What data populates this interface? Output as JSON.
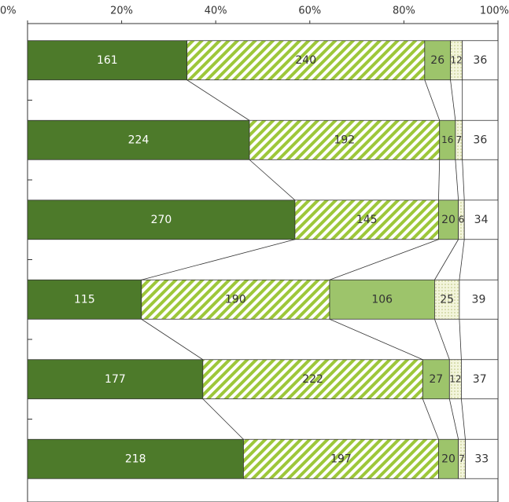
{
  "chart_data": {
    "type": "bar",
    "orientation": "horizontal",
    "percent_stacked": true,
    "categories": [
      null,
      null,
      null,
      null,
      null,
      null
    ],
    "series": [
      {
        "color": "#4d7a2a",
        "values": [
          161,
          224,
          270,
          115,
          177,
          218
        ]
      },
      {
        "color": "#9dc73a",
        "hatch": "stripes",
        "values": [
          240,
          192,
          145,
          190,
          222,
          197
        ]
      },
      {
        "color": "#9dc46b",
        "values": [
          26,
          16,
          20,
          106,
          27,
          20
        ]
      },
      {
        "color": "#e6ecb8",
        "hatch": "dots",
        "values": [
          12,
          7,
          6,
          25,
          12,
          7
        ]
      },
      {
        "color": "#ffffff",
        "values": [
          36,
          36,
          34,
          39,
          37,
          33
        ]
      }
    ],
    "xlim": [
      0,
      100
    ],
    "xticks": [
      {
        "value": 0,
        "label": "0%"
      },
      {
        "value": 20,
        "label": "20%"
      },
      {
        "value": 40,
        "label": "40%"
      },
      {
        "value": 60,
        "label": "60%"
      },
      {
        "value": 80,
        "label": "80%"
      },
      {
        "value": 100,
        "label": "100%"
      }
    ]
  }
}
